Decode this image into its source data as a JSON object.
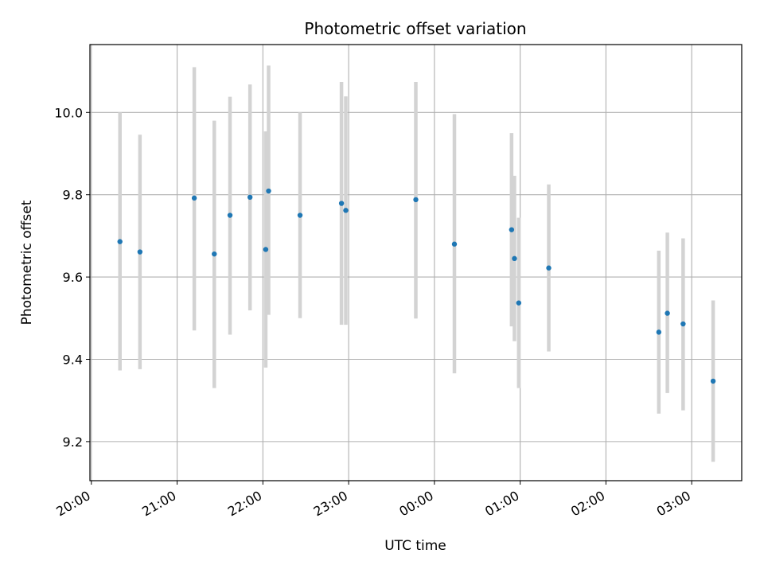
{
  "chart_data": {
    "type": "scatter",
    "title": "Photometric offset variation",
    "xlabel": "UTC time",
    "ylabel": "Photometric offset",
    "x_ticks": [
      "20:00",
      "21:00",
      "22:00",
      "23:00",
      "00:00",
      "01:00",
      "02:00",
      "03:00"
    ],
    "y_ticks": [
      "9.2",
      "9.4",
      "9.6",
      "9.8",
      "10.0"
    ],
    "xlim": [
      "19:59",
      "03:35"
    ],
    "ylim": [
      9.105,
      10.165
    ],
    "grid": true,
    "colors": {
      "point": "#1f77b4",
      "errorbar": "#d3d3d3",
      "grid": "#b0b0b0"
    },
    "points": [
      {
        "t": "20:20",
        "y": 9.686,
        "low": 9.373,
        "high": 10.0
      },
      {
        "t": "20:34",
        "y": 9.661,
        "low": 9.376,
        "high": 9.946
      },
      {
        "t": "21:12",
        "y": 9.792,
        "low": 9.47,
        "high": 10.11
      },
      {
        "t": "21:26",
        "y": 9.656,
        "low": 9.33,
        "high": 9.98
      },
      {
        "t": "21:37",
        "y": 9.75,
        "low": 9.46,
        "high": 10.038
      },
      {
        "t": "21:51",
        "y": 9.794,
        "low": 9.519,
        "high": 10.068
      },
      {
        "t": "22:02",
        "y": 9.667,
        "low": 9.38,
        "high": 9.954
      },
      {
        "t": "22:04",
        "y": 9.809,
        "low": 9.508,
        "high": 10.114
      },
      {
        "t": "22:26",
        "y": 9.75,
        "low": 9.5,
        "high": 10.0
      },
      {
        "t": "22:55",
        "y": 9.779,
        "low": 9.484,
        "high": 10.074
      },
      {
        "t": "22:58",
        "y": 9.762,
        "low": 9.484,
        "high": 10.039
      },
      {
        "t": "23:47",
        "y": 9.788,
        "low": 9.499,
        "high": 10.074
      },
      {
        "t": "00:14",
        "y": 9.68,
        "low": 9.366,
        "high": 9.996
      },
      {
        "t": "00:54",
        "y": 9.715,
        "low": 9.48,
        "high": 9.95
      },
      {
        "t": "00:56",
        "y": 9.645,
        "low": 9.444,
        "high": 9.846
      },
      {
        "t": "00:59",
        "y": 9.537,
        "low": 9.33,
        "high": 9.744
      },
      {
        "t": "01:20",
        "y": 9.622,
        "low": 9.419,
        "high": 9.825
      },
      {
        "t": "02:37",
        "y": 9.466,
        "low": 9.268,
        "high": 9.664
      },
      {
        "t": "02:43",
        "y": 9.512,
        "low": 9.318,
        "high": 9.708
      },
      {
        "t": "02:54",
        "y": 9.486,
        "low": 9.276,
        "high": 9.694
      },
      {
        "t": "03:15",
        "y": 9.347,
        "low": 9.151,
        "high": 9.543
      }
    ]
  }
}
